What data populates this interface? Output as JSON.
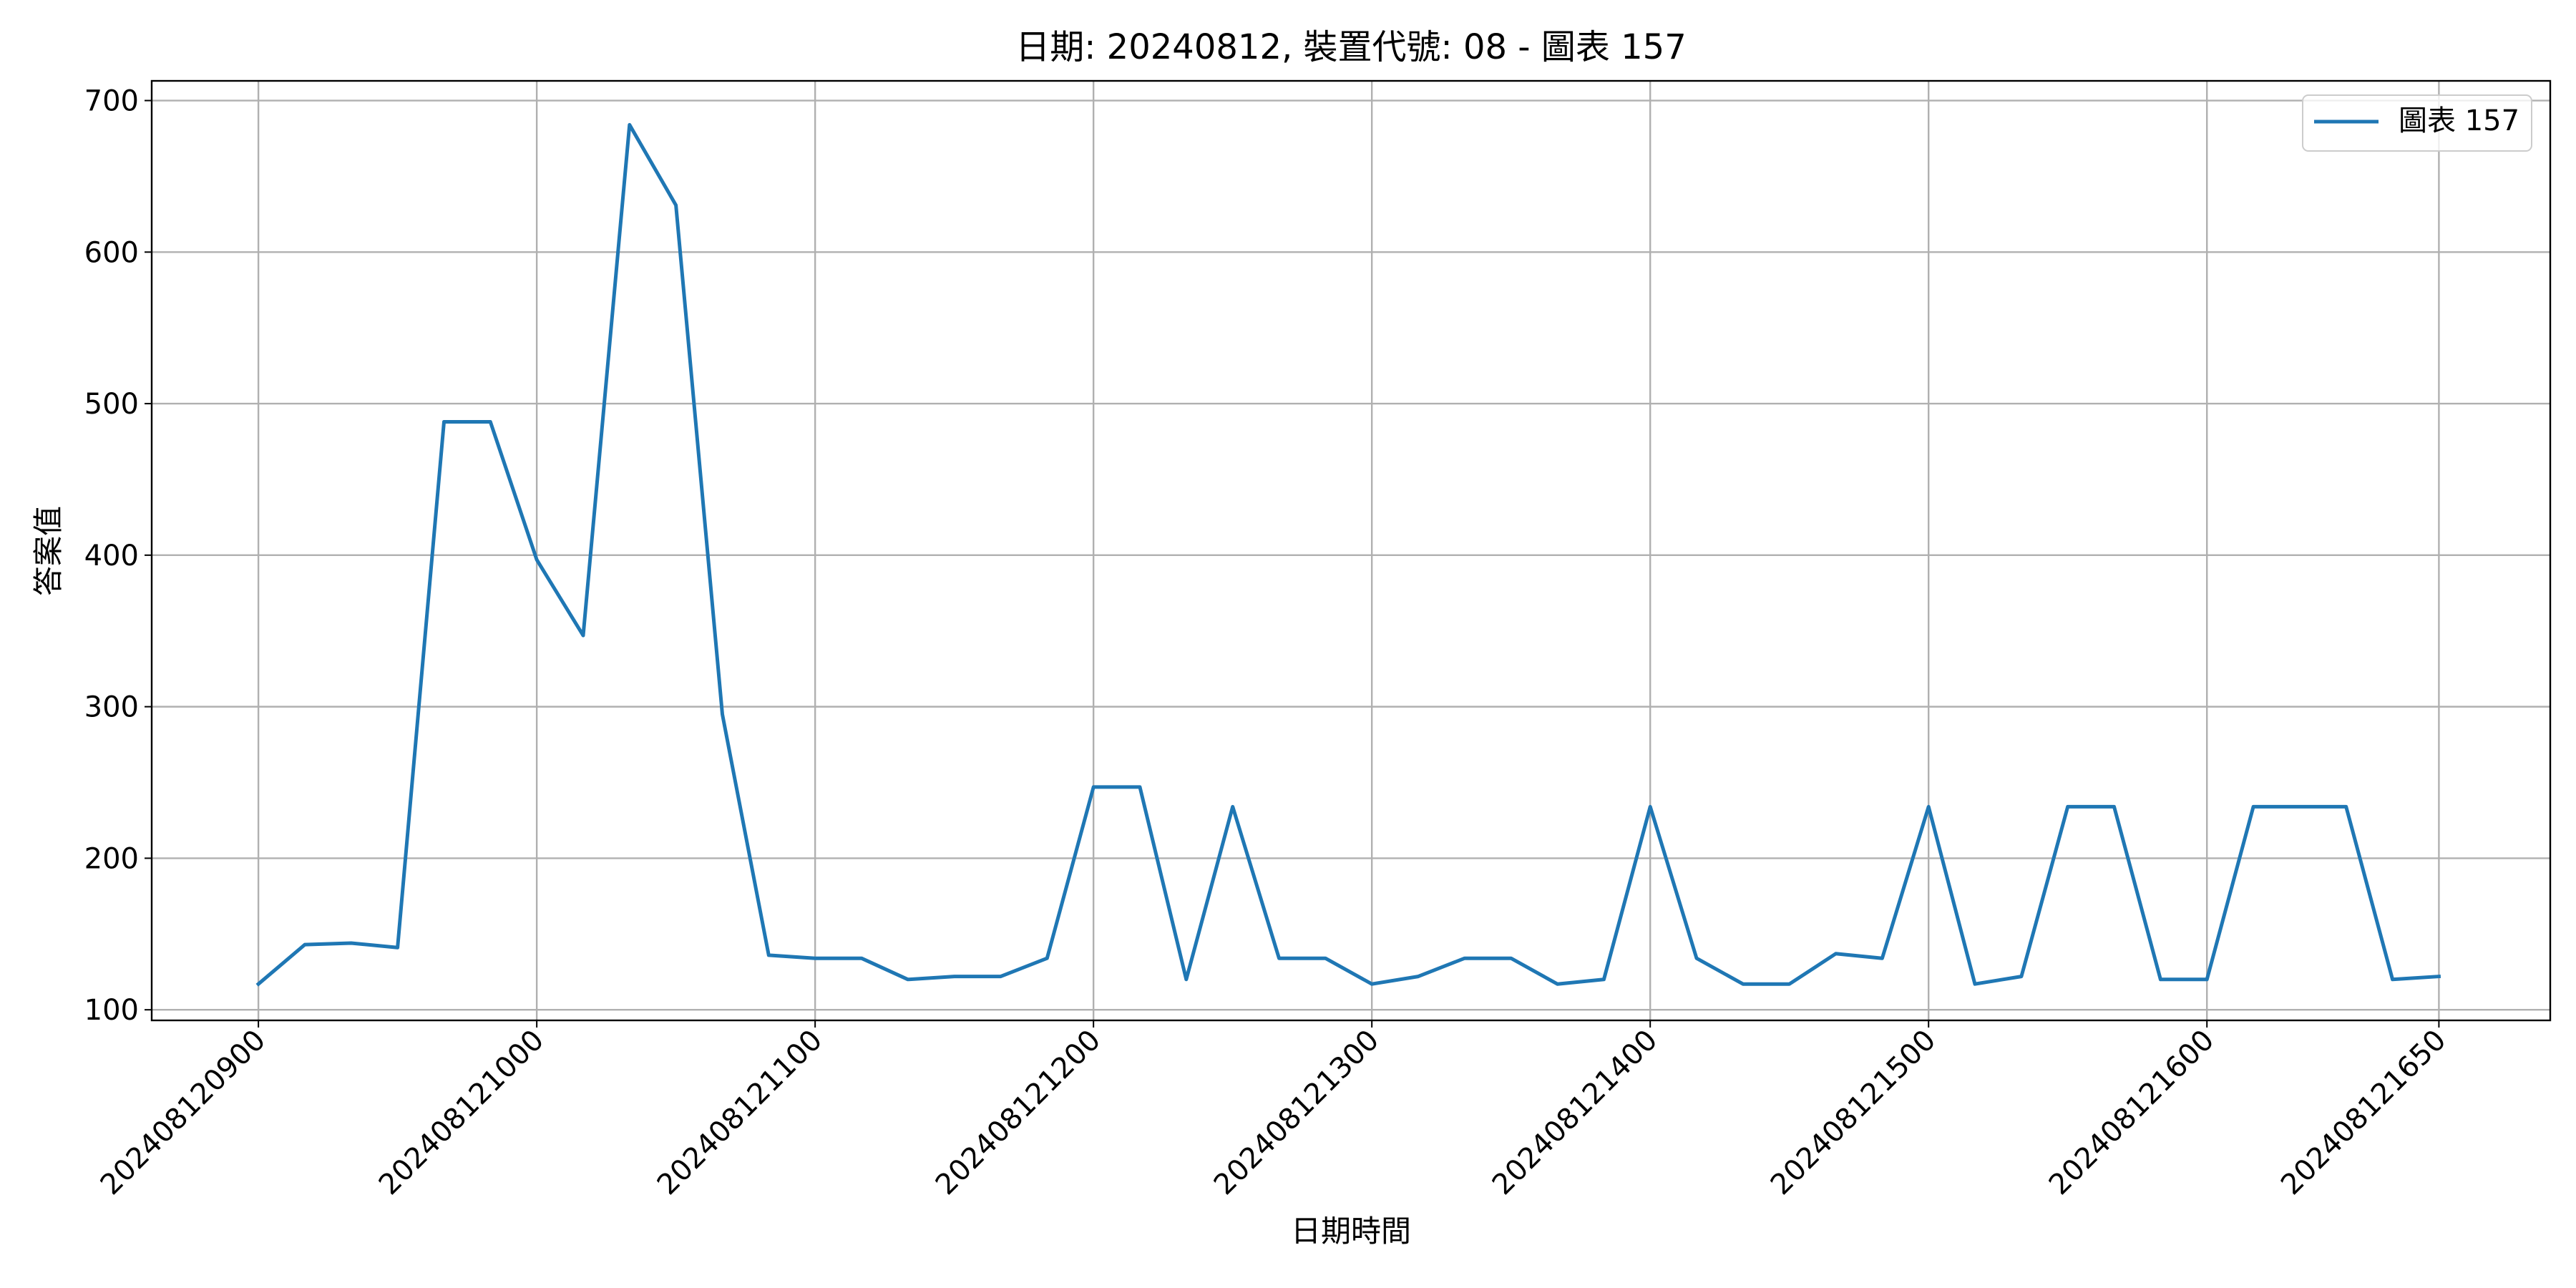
{
  "chart_data": {
    "type": "line",
    "title": "日期: 20240812, 裝置代號: 08 - 圖表 157",
    "xlabel": "日期時間",
    "ylabel": "答案值",
    "x_tick_labels": [
      "202408120900",
      "202408121000",
      "202408121100",
      "202408121200",
      "202408121300",
      "202408121400",
      "202408121500",
      "202408121600",
      "202408121650"
    ],
    "x_tick_positions": [
      0,
      6,
      12,
      18,
      24,
      30,
      36,
      42,
      47
    ],
    "y_ticks": [
      100,
      200,
      300,
      400,
      500,
      600,
      700
    ],
    "ylim": [
      93,
      713
    ],
    "xlim": [
      -2.3,
      49.4
    ],
    "grid": true,
    "legend_position": "top-right",
    "series": [
      {
        "name": "圖表 157",
        "color": "#1f77b4",
        "values": [
          117,
          143,
          144,
          141,
          488,
          488,
          397,
          347,
          684,
          631,
          295,
          136,
          134,
          134,
          120,
          122,
          122,
          134,
          247,
          247,
          120,
          234,
          134,
          134,
          117,
          122,
          134,
          134,
          117,
          120,
          234,
          134,
          117,
          117,
          137,
          134,
          234,
          117,
          122,
          234,
          234,
          120,
          120,
          234,
          234,
          234,
          120,
          122
        ]
      }
    ]
  }
}
